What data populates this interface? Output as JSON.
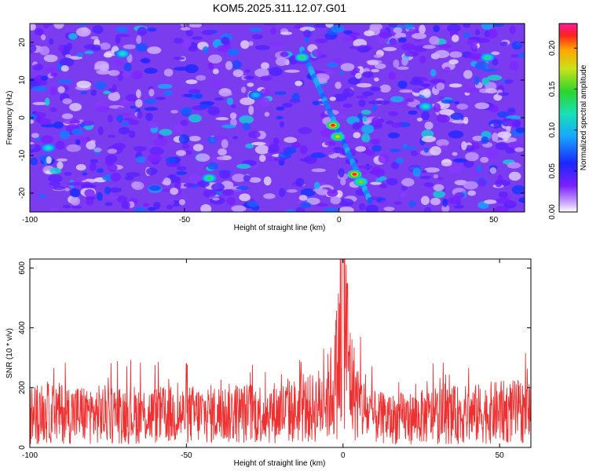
{
  "title": "KOM5.2025.311.12.07.G01",
  "chart_data": [
    {
      "type": "heatmap",
      "xlabel": "Height of straight line (km)",
      "ylabel": "Frequency (Hz)",
      "xlim": [
        -100,
        60
      ],
      "ylim": [
        -25,
        25
      ],
      "xticks": [
        "-100",
        "-50",
        "0",
        "50"
      ],
      "yticks": [
        "-20",
        "-10",
        "0",
        "10",
        "20"
      ],
      "colorbar": {
        "label": "Normalized spectral amplitude",
        "range": [
          0,
          0.23
        ],
        "ticks": [
          "0.00",
          "0.05",
          "0.10",
          "0.15",
          "0.20"
        ]
      },
      "hotspots": [
        {
          "x": -2,
          "y": -2,
          "value": 0.22
        },
        {
          "x": -0.5,
          "y": -5,
          "value": 0.18
        },
        {
          "x": 5,
          "y": -15,
          "value": 0.22
        },
        {
          "x": 7,
          "y": -17,
          "value": 0.16
        },
        {
          "x": -12,
          "y": 16,
          "value": 0.14
        },
        {
          "x": -42,
          "y": -16,
          "value": 0.14
        },
        {
          "x": -70,
          "y": 17,
          "value": 0.12
        },
        {
          "x": 48,
          "y": 16,
          "value": 0.13
        },
        {
          "x": 28,
          "y": 3,
          "value": 0.12
        },
        {
          "x": -94,
          "y": -8,
          "value": 0.12
        },
        {
          "x": -27,
          "y": 6,
          "value": 0.1
        }
      ]
    },
    {
      "type": "line",
      "xlabel": "Height of straight line (km)",
      "ylabel": "SNR (10 * v/v)",
      "xlim": [
        -100,
        60
      ],
      "ylim": [
        0,
        630
      ],
      "xticks": [
        "-100",
        "-50",
        "0",
        "50"
      ],
      "yticks": [
        "0",
        "200",
        "400",
        "600"
      ],
      "color": "#ee3030",
      "series": [
        {
          "x": [
            -100,
            -90,
            -80,
            -70,
            -60,
            -50,
            -40,
            -30,
            -20,
            -15,
            -10,
            -7,
            -5,
            -3,
            -2,
            -1,
            0,
            1,
            2,
            3,
            5,
            7,
            10,
            15,
            20,
            30,
            40,
            50,
            60
          ],
          "values": [
            110,
            115,
            110,
            112,
            108,
            110,
            112,
            115,
            118,
            122,
            130,
            145,
            165,
            200,
            250,
            330,
            600,
            380,
            260,
            200,
            150,
            120,
            100,
            95,
            98,
            105,
            110,
            118,
            120
          ]
        }
      ]
    }
  ]
}
